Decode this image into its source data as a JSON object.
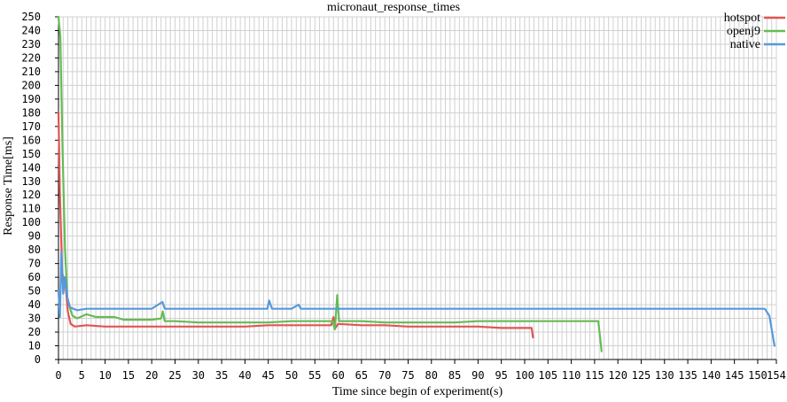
{
  "chart_data": {
    "type": "line",
    "title": "micronaut_response_times",
    "xlabel": "Time since begin of experiment(s)",
    "ylabel": "Response Time[ms]",
    "xlim": [
      0,
      154
    ],
    "ylim": [
      0,
      250
    ],
    "x_ticks": [
      0,
      5,
      10,
      15,
      20,
      25,
      30,
      35,
      40,
      45,
      50,
      55,
      60,
      65,
      70,
      75,
      80,
      85,
      90,
      95,
      100,
      105,
      110,
      115,
      120,
      125,
      130,
      135,
      140,
      145,
      150,
      154
    ],
    "y_ticks": [
      0,
      10,
      20,
      30,
      40,
      50,
      60,
      70,
      80,
      90,
      100,
      110,
      120,
      130,
      140,
      150,
      160,
      170,
      180,
      190,
      200,
      210,
      220,
      230,
      240,
      250
    ],
    "grid": true,
    "legend_position": "top-right",
    "series": [
      {
        "name": "hotspot",
        "color": "#e05555",
        "points": [
          [
            0,
            180
          ],
          [
            0.3,
            120
          ],
          [
            0.8,
            63
          ],
          [
            1.5,
            55
          ],
          [
            2,
            35
          ],
          [
            2.6,
            26
          ],
          [
            3.5,
            24
          ],
          [
            6,
            25
          ],
          [
            10,
            24
          ],
          [
            15,
            24
          ],
          [
            20,
            24
          ],
          [
            25,
            24
          ],
          [
            30,
            24
          ],
          [
            35,
            24
          ],
          [
            40,
            24
          ],
          [
            45,
            25
          ],
          [
            50,
            25
          ],
          [
            55,
            25
          ],
          [
            58.5,
            25
          ],
          [
            59,
            31
          ],
          [
            59.4,
            23
          ],
          [
            60,
            26
          ],
          [
            65,
            25
          ],
          [
            70,
            25
          ],
          [
            75,
            24
          ],
          [
            80,
            24
          ],
          [
            85,
            24
          ],
          [
            90,
            24
          ],
          [
            95,
            23
          ],
          [
            101.5,
            23
          ],
          [
            101.8,
            16
          ]
        ]
      },
      {
        "name": "openj9",
        "color": "#66bb55",
        "points": [
          [
            0,
            250
          ],
          [
            0.4,
            235
          ],
          [
            0.9,
            150
          ],
          [
            1.4,
            80
          ],
          [
            1.9,
            45
          ],
          [
            2.5,
            37
          ],
          [
            3,
            32
          ],
          [
            4,
            30
          ],
          [
            6,
            33
          ],
          [
            8,
            31
          ],
          [
            12,
            31
          ],
          [
            14,
            29
          ],
          [
            20,
            29
          ],
          [
            22,
            30
          ],
          [
            22.4,
            35
          ],
          [
            22.8,
            28
          ],
          [
            25,
            28
          ],
          [
            30,
            27
          ],
          [
            35,
            27
          ],
          [
            40,
            27
          ],
          [
            45,
            27
          ],
          [
            50,
            28
          ],
          [
            55,
            28
          ],
          [
            58.8,
            28
          ],
          [
            59.3,
            22
          ],
          [
            59.8,
            47
          ],
          [
            60.2,
            28
          ],
          [
            65,
            28
          ],
          [
            70,
            27
          ],
          [
            75,
            27
          ],
          [
            80,
            27
          ],
          [
            85,
            27
          ],
          [
            90,
            28
          ],
          [
            95,
            28
          ],
          [
            100,
            28
          ],
          [
            105,
            28
          ],
          [
            110,
            28
          ],
          [
            115.8,
            28
          ],
          [
            116.5,
            6
          ]
        ]
      },
      {
        "name": "native",
        "color": "#5599dd",
        "points": [
          [
            0,
            50
          ],
          [
            0.3,
            31
          ],
          [
            0.6,
            78
          ],
          [
            1,
            48
          ],
          [
            1.4,
            60
          ],
          [
            1.9,
            45
          ],
          [
            2.5,
            38
          ],
          [
            4,
            36
          ],
          [
            6,
            37
          ],
          [
            10,
            37
          ],
          [
            15,
            37
          ],
          [
            20,
            37
          ],
          [
            22.3,
            42
          ],
          [
            22.8,
            37
          ],
          [
            25,
            37
          ],
          [
            30,
            37
          ],
          [
            35,
            37
          ],
          [
            40,
            37
          ],
          [
            44.8,
            37
          ],
          [
            45.2,
            43
          ],
          [
            45.8,
            37
          ],
          [
            50,
            37
          ],
          [
            51.5,
            40
          ],
          [
            52,
            37
          ],
          [
            55,
            37
          ],
          [
            60,
            37
          ],
          [
            65,
            37
          ],
          [
            70,
            37
          ],
          [
            75,
            37
          ],
          [
            80,
            37
          ],
          [
            85,
            37
          ],
          [
            90,
            37
          ],
          [
            95,
            37
          ],
          [
            100,
            37
          ],
          [
            105,
            37
          ],
          [
            110,
            37
          ],
          [
            115,
            37
          ],
          [
            120,
            37
          ],
          [
            125,
            37
          ],
          [
            130,
            37
          ],
          [
            135,
            37
          ],
          [
            140,
            37
          ],
          [
            145,
            37
          ],
          [
            151.5,
            37
          ],
          [
            152.5,
            32
          ],
          [
            153.6,
            10
          ]
        ]
      }
    ]
  }
}
